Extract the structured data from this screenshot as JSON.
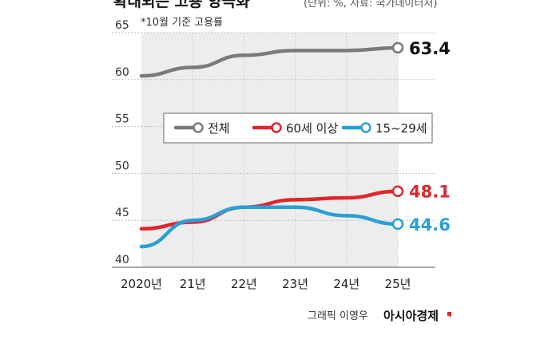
{
  "header": {
    "title_fragment": "확대되는 고용 양극화",
    "source_fragment": "(단위: %, 자료: 국가데이터처)",
    "note": "*10월 기준 고용률"
  },
  "credit": {
    "text": "그래픽 이영우",
    "brand": "아시아경제"
  },
  "colors": {
    "total": "#7a7a7a",
    "senior": "#e0262b",
    "youth": "#2a9fd6",
    "band": "#ededed",
    "grid": "#bfbfbf"
  },
  "chart_data": {
    "type": "line",
    "title": "확대되는 고용 양극화",
    "subtitle": "*10월 기준 고용률",
    "categories": [
      "2020년",
      "21년",
      "22년",
      "23년",
      "24년",
      "25년"
    ],
    "ylim": [
      40,
      65
    ],
    "yticks": [
      40,
      45,
      50,
      55,
      60,
      65
    ],
    "series": [
      {
        "name": "전체",
        "key": "total",
        "values": [
          60.4,
          61.3,
          62.6,
          63.1,
          63.1,
          63.4
        ],
        "end_label": "63.4"
      },
      {
        "name": "60세 이상",
        "key": "senior",
        "values": [
          44.1,
          44.8,
          46.4,
          47.2,
          47.4,
          48.1
        ],
        "end_label": "48.1"
      },
      {
        "name": "15~29세",
        "key": "youth",
        "values": [
          42.2,
          45.0,
          46.4,
          46.4,
          45.5,
          44.6
        ],
        "end_label": "44.6"
      }
    ],
    "legend_position": "middle"
  }
}
